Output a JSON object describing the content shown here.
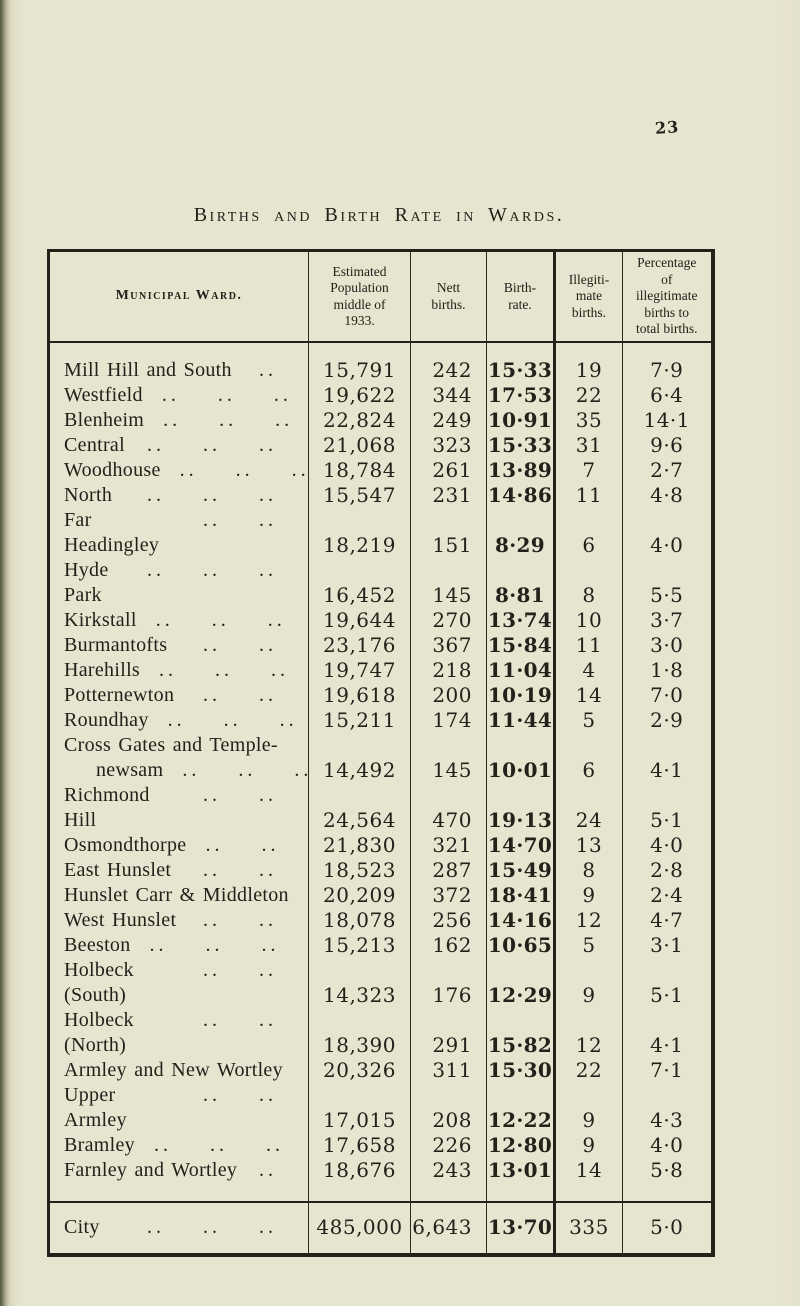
{
  "page": {
    "number": "23"
  },
  "title": "Births and Birth Rate in Wards.",
  "table": {
    "headers": {
      "ward": "Municipal Ward.",
      "population": "Estimated\nPopulation\nmiddle of\n1933.",
      "nett": "Nett\nbirths.",
      "rate": "Birth-\nrate.",
      "illegitimate": "Illegiti-\nmate\nbirths.",
      "percentage": "Percentage\nof\nillegitimate\nbirths to\ntotal births."
    },
    "rows": [
      {
        "ward": "Mill Hill and South",
        "dots": 1,
        "population": "15,791",
        "nett": "242",
        "rate": "15·33",
        "illegitimate": "19",
        "percentage": "7·9"
      },
      {
        "ward": "Westfield",
        "dots": 3,
        "population": "19,622",
        "nett": "344",
        "rate": "17·53",
        "illegitimate": "22",
        "percentage": "6·4"
      },
      {
        "ward": "Blenheim",
        "dots": 3,
        "population": "22,824",
        "nett": "249",
        "rate": "10·91",
        "illegitimate": "35",
        "percentage": "14·1"
      },
      {
        "ward": "Central",
        "dots": 3,
        "population": "21,068",
        "nett": "323",
        "rate": "15·33",
        "illegitimate": "31",
        "percentage": "9·6"
      },
      {
        "ward": "Woodhouse",
        "dots": 3,
        "population": "18,784",
        "nett": "261",
        "rate": "13·89",
        "illegitimate": "7",
        "percentage": "2·7"
      },
      {
        "ward": "North",
        "dots": 3,
        "population": "15,547",
        "nett": "231",
        "rate": "14·86",
        "illegitimate": "11",
        "percentage": "4·8"
      },
      {
        "ward": "Far Headingley",
        "dots": 2,
        "population": "18,219",
        "nett": "151",
        "rate": "8·29",
        "illegitimate": "6",
        "percentage": "4·0"
      },
      {
        "ward": "Hyde Park",
        "dots": 3,
        "population": "16,452",
        "nett": "145",
        "rate": "8·81",
        "illegitimate": "8",
        "percentage": "5·5"
      },
      {
        "ward": "Kirkstall",
        "dots": 3,
        "population": "19,644",
        "nett": "270",
        "rate": "13·74",
        "illegitimate": "10",
        "percentage": "3·7"
      },
      {
        "ward": "Burmantofts",
        "dots": 2,
        "population": "23,176",
        "nett": "367",
        "rate": "15·84",
        "illegitimate": "11",
        "percentage": "3·0"
      },
      {
        "ward": "Harehills",
        "dots": 3,
        "population": "19,747",
        "nett": "218",
        "rate": "11·04",
        "illegitimate": "4",
        "percentage": "1·8"
      },
      {
        "ward": "Potternewton",
        "dots": 2,
        "population": "19,618",
        "nett": "200",
        "rate": "10·19",
        "illegitimate": "14",
        "percentage": "7·0"
      },
      {
        "ward": "Roundhay",
        "dots": 3,
        "population": "15,211",
        "nett": "174",
        "rate": "11·44",
        "illegitimate": "5",
        "percentage": "2·9"
      },
      {
        "ward": "Cross Gates and Temple-",
        "ward2": "newsam",
        "dots": 3,
        "population": "14,492",
        "nett": "145",
        "rate": "10·01",
        "illegitimate": "6",
        "percentage": "4·1"
      },
      {
        "ward": "Richmond Hill",
        "dots": 2,
        "population": "24,564",
        "nett": "470",
        "rate": "19·13",
        "illegitimate": "24",
        "percentage": "5·1"
      },
      {
        "ward": "Osmondthorpe",
        "dots": 2,
        "population": "21,830",
        "nett": "321",
        "rate": "14·70",
        "illegitimate": "13",
        "percentage": "4·0"
      },
      {
        "ward": "East Hunslet",
        "dots": 2,
        "population": "18,523",
        "nett": "287",
        "rate": "15·49",
        "illegitimate": "8",
        "percentage": "2·8"
      },
      {
        "ward": "Hunslet Carr & Middleton",
        "dots": 0,
        "population": "20,209",
        "nett": "372",
        "rate": "18·41",
        "illegitimate": "9",
        "percentage": "2·4"
      },
      {
        "ward": "West Hunslet",
        "dots": 2,
        "population": "18,078",
        "nett": "256",
        "rate": "14·16",
        "illegitimate": "12",
        "percentage": "4·7"
      },
      {
        "ward": "Beeston",
        "dots": 3,
        "population": "15,213",
        "nett": "162",
        "rate": "10·65",
        "illegitimate": "5",
        "percentage": "3·1"
      },
      {
        "ward": "Holbeck (South)",
        "dots": 2,
        "population": "14,323",
        "nett": "176",
        "rate": "12·29",
        "illegitimate": "9",
        "percentage": "5·1"
      },
      {
        "ward": "Holbeck (North)",
        "dots": 2,
        "population": "18,390",
        "nett": "291",
        "rate": "15·82",
        "illegitimate": "12",
        "percentage": "4·1"
      },
      {
        "ward": "Armley and New Wortley",
        "dots": 0,
        "population": "20,326",
        "nett": "311",
        "rate": "15·30",
        "illegitimate": "22",
        "percentage": "7·1"
      },
      {
        "ward": "Upper Armley",
        "dots": 2,
        "population": "17,015",
        "nett": "208",
        "rate": "12·22",
        "illegitimate": "9",
        "percentage": "4·3"
      },
      {
        "ward": "Bramley",
        "dots": 3,
        "population": "17,658",
        "nett": "226",
        "rate": "12·80",
        "illegitimate": "9",
        "percentage": "4·0"
      },
      {
        "ward": "Farnley and Wortley",
        "dots": 1,
        "population": "18,676",
        "nett": "243",
        "rate": "13·01",
        "illegitimate": "14",
        "percentage": "5·8"
      }
    ],
    "total": {
      "ward": "City",
      "dots": 3,
      "population": "485,000",
      "nett": "6,643",
      "rate": "13·70",
      "illegitimate": "335",
      "percentage": "5·0"
    }
  }
}
